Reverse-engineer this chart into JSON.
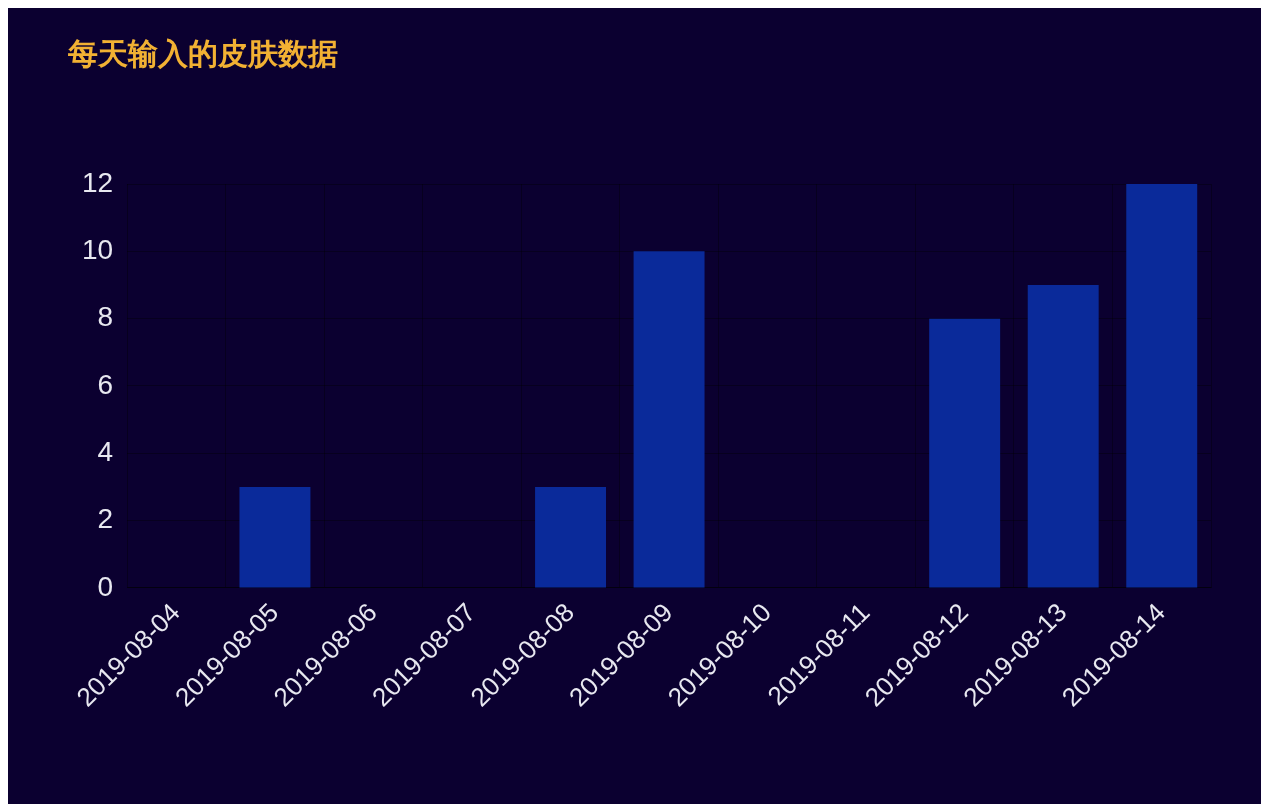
{
  "chart_data": {
    "type": "bar",
    "title": "每天输入的皮肤数据",
    "categories": [
      "2019-08-04",
      "2019-08-05",
      "2019-08-06",
      "2019-08-07",
      "2019-08-08",
      "2019-08-09",
      "2019-08-10",
      "2019-08-11",
      "2019-08-12",
      "2019-08-13",
      "2019-08-14"
    ],
    "values": [
      0,
      3,
      0,
      0,
      3,
      10,
      0,
      0,
      8,
      9,
      12
    ],
    "color": "#0a2a9a",
    "ylim": [
      0,
      12
    ],
    "yticks": [
      0,
      2,
      4,
      6,
      8,
      10,
      12
    ],
    "grid": true,
    "legend": false
  }
}
